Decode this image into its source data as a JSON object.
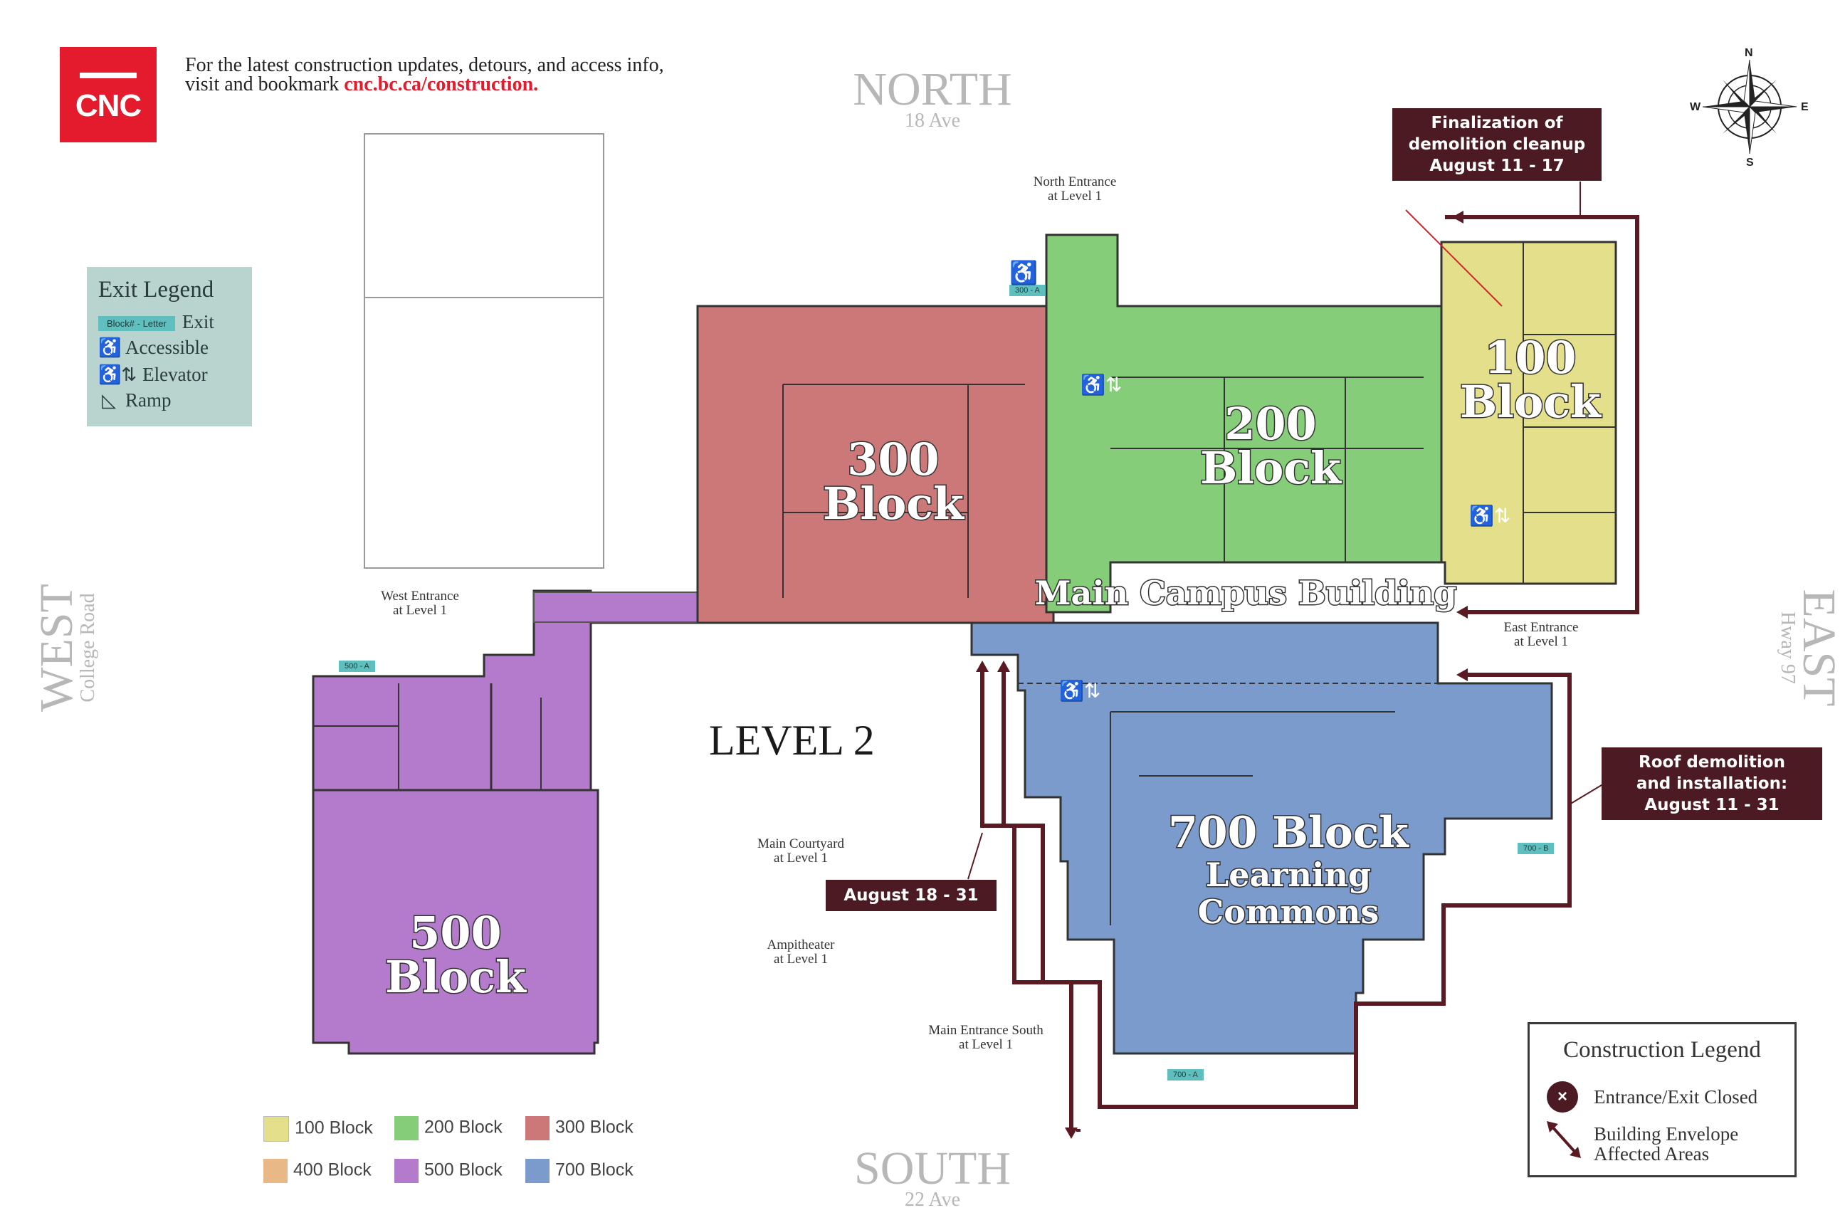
{
  "header": {
    "logo_text": "CNC",
    "line1": "For the latest construction updates, detours, and access info,",
    "line2_prefix": "visit and bookmark ",
    "line2_link": "cnc.bc.ca/construction."
  },
  "directions": {
    "north": "NORTH",
    "north_sub": "18 Ave",
    "south": "SOUTH",
    "south_sub": "22 Ave",
    "west": "WEST",
    "west_sub": "College Road",
    "east": "EAST",
    "east_sub": "Hway 97"
  },
  "compass": {
    "n": "N",
    "s": "S",
    "e": "E",
    "w": "W"
  },
  "exit_legend": {
    "title": "Exit Legend",
    "exit_chip": "Block# - Letter",
    "exit_label": "Exit",
    "accessible_label": "Accessible",
    "elevator_label": "Elevator",
    "ramp_label": "Ramp"
  },
  "callouts": {
    "finalization": [
      "Finalization of",
      "demolition cleanup",
      "August 11 - 17"
    ],
    "roof": [
      "Roof demolition",
      "and installation:",
      "August 11 - 31"
    ],
    "august": [
      "August 18 - 31"
    ]
  },
  "blocks": {
    "b100": [
      "100",
      "Block"
    ],
    "b200": [
      "200",
      "Block"
    ],
    "b300": [
      "300",
      "Block"
    ],
    "b500": [
      "500",
      "Block"
    ],
    "b700": [
      "700 Block",
      "Learning",
      "Commons"
    ],
    "main_building": "Main Campus Building"
  },
  "entrances": {
    "north": [
      "North Entrance",
      "at Level 1"
    ],
    "west": [
      "West Entrance",
      "at Level 1"
    ],
    "east": [
      "East Entrance",
      "at Level 1"
    ],
    "courtyard": [
      "Main Courtyard",
      "at Level 1"
    ],
    "amphitheater": [
      "Ampitheater",
      "at Level 1"
    ],
    "south": [
      "Main Entrance South",
      "at Level 1"
    ]
  },
  "exit_tags": {
    "t300a": "300 - A",
    "t500a": "500 - A",
    "t700b": "700 - B",
    "t700a": "700 - A"
  },
  "level_title": "LEVEL 2",
  "block_legend": [
    {
      "label": "100 Block",
      "color": "#e3df8b"
    },
    {
      "label": "200 Block",
      "color": "#86cd7a"
    },
    {
      "label": "300 Block",
      "color": "#cd7878"
    },
    {
      "label": "400 Block",
      "color": "#e8b987"
    },
    {
      "label": "500 Block",
      "color": "#b47bcc"
    },
    {
      "label": "700 Block",
      "color": "#7c9bcd"
    }
  ],
  "construction_legend": {
    "title": "Construction Legend",
    "closed_label": "Entrance/Exit Closed",
    "envelope_label_1": "Building Envelope",
    "envelope_label_2": "Affected Areas"
  },
  "colors": {
    "brand_red": "#e31b2c",
    "route_maroon": "#5a1a24",
    "block_100": "#e3df8b",
    "block_200": "#86cd7a",
    "block_300": "#cd7878",
    "block_500": "#b47bcc",
    "block_700": "#7c9bcd"
  },
  "icons": [
    "wheelchair-icon",
    "elevator-icon",
    "ramp-icon",
    "compass-rose-icon",
    "closed-x-icon",
    "diagonal-arrow-icon"
  ]
}
